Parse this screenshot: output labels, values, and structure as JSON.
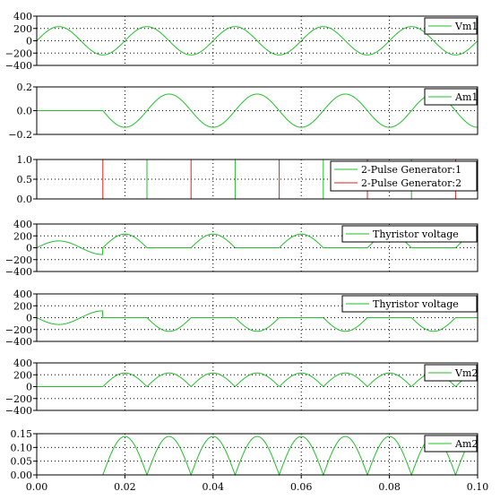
{
  "chart_data": [
    {
      "type": "line",
      "title": "",
      "xlabel": "",
      "ylabel": "",
      "xlim": [
        0,
        0.1
      ],
      "ylim": [
        -400,
        400
      ],
      "yticks": [
        400,
        200,
        0,
        -200,
        -400
      ],
      "ytick_labels": [
        "400",
        "200",
        "0",
        "−200",
        "−400"
      ],
      "grid": "dotted",
      "legend_position": "top-right",
      "series": [
        {
          "name": "Vm1",
          "color": "#22c02a",
          "waveform": "source_voltage",
          "amplitude": 230,
          "frequency_hz": 50,
          "phase_deg": 0
        }
      ]
    },
    {
      "type": "line",
      "title": "",
      "xlabel": "",
      "ylabel": "",
      "xlim": [
        0,
        0.1
      ],
      "ylim": [
        -0.2,
        0.2
      ],
      "yticks": [
        0.2,
        0.0,
        -0.2
      ],
      "ytick_labels": [
        "0.2",
        "0.0",
        "−0.2"
      ],
      "grid": "dotted",
      "legend_position": "top-right",
      "series": [
        {
          "name": "Am1",
          "color": "#22c02a",
          "waveform": "source_current",
          "amplitude": 0.14,
          "frequency_hz": 50,
          "start_time": 0.015
        }
      ]
    },
    {
      "type": "line",
      "title": "",
      "xlabel": "",
      "ylabel": "",
      "xlim": [
        0,
        0.1
      ],
      "ylim": [
        0,
        1.0
      ],
      "yticks": [
        1.0,
        0.5,
        0.0
      ],
      "ytick_labels": [
        "1.0",
        "0.5",
        "0.0"
      ],
      "grid": "dotted",
      "legend_position": "top-right",
      "series": [
        {
          "name": "2-Pulse Generator:1",
          "color": "#22c02a",
          "waveform": "pulses",
          "pulse_times": [
            0.025,
            0.045,
            0.065,
            0.085
          ]
        },
        {
          "name": "2-Pulse Generator:2",
          "color": "#e02020",
          "waveform": "pulses",
          "pulse_times": [
            0.015,
            0.035,
            0.055,
            0.075,
            0.095
          ]
        }
      ]
    },
    {
      "type": "line",
      "title": "",
      "xlabel": "",
      "ylabel": "",
      "xlim": [
        0,
        0.1
      ],
      "ylim": [
        -400,
        400
      ],
      "yticks": [
        400,
        200,
        0,
        -200,
        -400
      ],
      "ytick_labels": [
        "400",
        "200",
        "0",
        "−200",
        "−400"
      ],
      "grid": "dotted",
      "legend_position": "top-right",
      "series": [
        {
          "name": "Thyristor voltage",
          "color": "#22c02a",
          "waveform": "thyristor_a",
          "amplitude": 230,
          "frequency_hz": 50,
          "pulse_times": [
            0.025,
            0.045,
            0.065,
            0.085
          ],
          "other_pulse_times": [
            0.015,
            0.035,
            0.055,
            0.075,
            0.095
          ]
        }
      ]
    },
    {
      "type": "line",
      "title": "",
      "xlabel": "",
      "ylabel": "",
      "xlim": [
        0,
        0.1
      ],
      "ylim": [
        -400,
        400
      ],
      "yticks": [
        400,
        200,
        0,
        -200,
        -400
      ],
      "ytick_labels": [
        "400",
        "200",
        "0",
        "−200",
        "−400"
      ],
      "grid": "dotted",
      "legend_position": "top-right",
      "series": [
        {
          "name": "Thyristor voltage",
          "color": "#22c02a",
          "waveform": "thyristor_b",
          "amplitude": 230,
          "frequency_hz": 50,
          "pulse_times": [
            0.015,
            0.035,
            0.055,
            0.075,
            0.095
          ],
          "other_pulse_times": [
            0.025,
            0.045,
            0.065,
            0.085
          ]
        }
      ]
    },
    {
      "type": "line",
      "title": "",
      "xlabel": "",
      "ylabel": "",
      "xlim": [
        0,
        0.1
      ],
      "ylim": [
        -400,
        400
      ],
      "yticks": [
        400,
        200,
        0,
        -200,
        -400
      ],
      "ytick_labels": [
        "400",
        "200",
        "0",
        "−200",
        "−400"
      ],
      "grid": "dotted",
      "legend_position": "top-right",
      "series": [
        {
          "name": "Vm2",
          "color": "#22c02a",
          "waveform": "load_voltage",
          "amplitude": 230,
          "frequency_hz": 50,
          "start_time": 0.015,
          "firing_delay": 0.005
        }
      ]
    },
    {
      "type": "line",
      "title": "",
      "xlabel": "",
      "ylabel": "",
      "xlim": [
        0,
        0.1
      ],
      "ylim": [
        0,
        0.15
      ],
      "yticks": [
        0.15,
        0.1,
        0.05,
        0.0
      ],
      "ytick_labels": [
        "0.15",
        "0.10",
        "0.05",
        "0.00"
      ],
      "xticks": [
        0.0,
        0.02,
        0.04,
        0.06,
        0.08,
        0.1
      ],
      "xtick_labels": [
        "0.00",
        "0.02",
        "0.04",
        "0.06",
        "0.08",
        "0.10"
      ],
      "grid": "dotted",
      "legend_position": "top-right",
      "series": [
        {
          "name": "Am2",
          "color": "#22c02a",
          "waveform": "load_current",
          "amplitude": 0.14,
          "frequency_hz": 50,
          "start_time": 0.015
        }
      ]
    }
  ]
}
